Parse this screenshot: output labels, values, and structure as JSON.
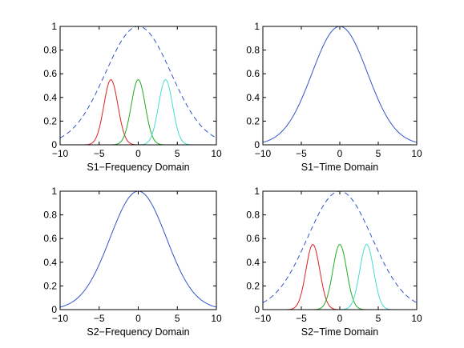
{
  "chart_data": [
    {
      "type": "line",
      "xlabel": "S1−Frequency Domain",
      "xlim": [
        -10,
        10
      ],
      "ylim": [
        0,
        1
      ],
      "xticks": [
        -10,
        -5,
        0,
        5,
        10
      ],
      "yticks": [
        0,
        0.2,
        0.4,
        0.6,
        0.8,
        1
      ],
      "xtick_labels": [
        "−10",
        "−5",
        "0",
        "5",
        "10"
      ],
      "ytick_labels": [
        "0",
        "0.2",
        "0.4",
        "0.6",
        "0.8",
        "1"
      ],
      "grid": false,
      "series": [
        {
          "color": "#3355cc",
          "style": "dashed",
          "shape": "gaussian",
          "peak": 1.0,
          "center": 0,
          "sigma": 4.2
        },
        {
          "color": "#dd2222",
          "style": "solid",
          "shape": "gaussian",
          "peak": 0.55,
          "center": -3.5,
          "sigma": 0.9
        },
        {
          "color": "#22aa22",
          "style": "solid",
          "shape": "gaussian",
          "peak": 0.55,
          "center": 0,
          "sigma": 0.9
        },
        {
          "color": "#44ddcc",
          "style": "solid",
          "shape": "gaussian",
          "peak": 0.55,
          "center": 3.5,
          "sigma": 0.9
        }
      ]
    },
    {
      "type": "line",
      "xlabel": "S1−Time Domain",
      "xlim": [
        -10,
        10
      ],
      "ylim": [
        0,
        1
      ],
      "xticks": [
        -10,
        -5,
        0,
        5,
        10
      ],
      "yticks": [
        0,
        0.2,
        0.4,
        0.6,
        0.8,
        1
      ],
      "xtick_labels": [
        "−10",
        "−5",
        "0",
        "5",
        "10"
      ],
      "ytick_labels": [
        "0",
        "0.2",
        "0.4",
        "0.6",
        "0.8",
        "1"
      ],
      "grid": false,
      "series": [
        {
          "color": "#3355cc",
          "style": "solid",
          "shape": "gaussian",
          "peak": 1.0,
          "center": 0,
          "sigma": 3.6
        }
      ]
    },
    {
      "type": "line",
      "xlabel": "S2−Frequency Domain",
      "xlim": [
        -10,
        10
      ],
      "ylim": [
        0,
        1
      ],
      "xticks": [
        -10,
        -5,
        0,
        5,
        10
      ],
      "yticks": [
        0,
        0.2,
        0.4,
        0.6,
        0.8,
        1
      ],
      "xtick_labels": [
        "−10",
        "−5",
        "0",
        "5",
        "10"
      ],
      "ytick_labels": [
        "0",
        "0.2",
        "0.4",
        "0.6",
        "0.8",
        "1"
      ],
      "grid": false,
      "series": [
        {
          "color": "#3355cc",
          "style": "solid",
          "shape": "gaussian",
          "peak": 1.0,
          "center": 0,
          "sigma": 3.6
        }
      ]
    },
    {
      "type": "line",
      "xlabel": "S2−Time Domain",
      "xlim": [
        -10,
        10
      ],
      "ylim": [
        0,
        1
      ],
      "xticks": [
        -10,
        -5,
        0,
        5,
        10
      ],
      "yticks": [
        0,
        0.2,
        0.4,
        0.6,
        0.8,
        1
      ],
      "xtick_labels": [
        "−10",
        "−5",
        "0",
        "5",
        "10"
      ],
      "ytick_labels": [
        "0",
        "0.2",
        "0.4",
        "0.6",
        "0.8",
        "1"
      ],
      "grid": false,
      "series": [
        {
          "color": "#3355cc",
          "style": "dashed",
          "shape": "gaussian",
          "peak": 1.0,
          "center": 0,
          "sigma": 4.2
        },
        {
          "color": "#dd2222",
          "style": "solid",
          "shape": "gaussian",
          "peak": 0.55,
          "center": -3.5,
          "sigma": 0.9
        },
        {
          "color": "#22aa22",
          "style": "solid",
          "shape": "gaussian",
          "peak": 0.55,
          "center": 0,
          "sigma": 0.9
        },
        {
          "color": "#44ddcc",
          "style": "solid",
          "shape": "gaussian",
          "peak": 0.55,
          "center": 3.5,
          "sigma": 0.9
        }
      ]
    }
  ]
}
